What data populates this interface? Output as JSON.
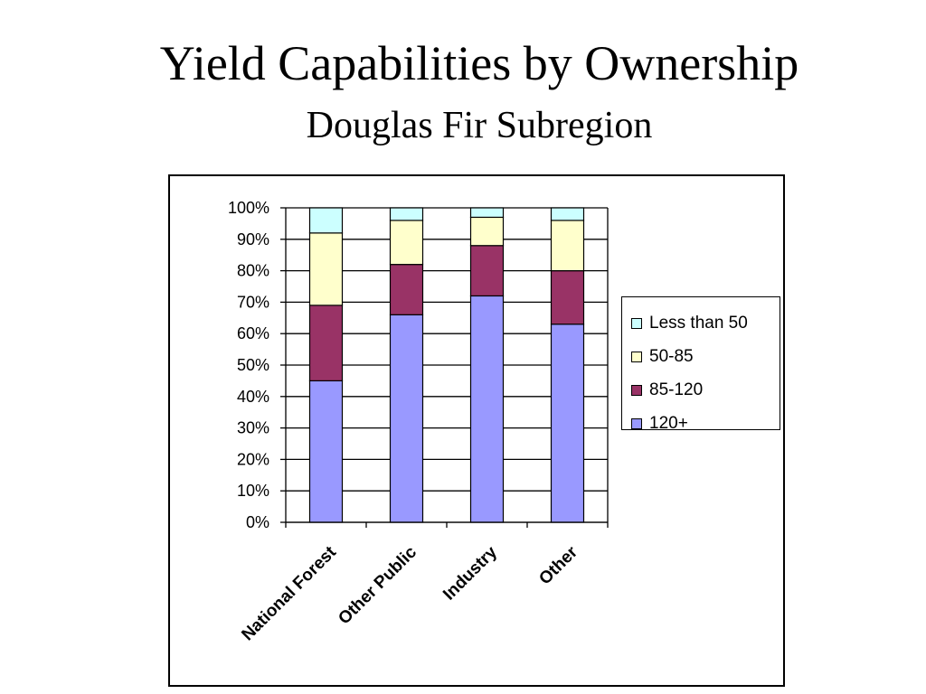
{
  "slide": {
    "title": "Yield Capabilities by Ownership",
    "subtitle": "Douglas Fir Subregion"
  },
  "chart_data": {
    "type": "bar",
    "stacked": "percent",
    "categories": [
      "National Forest",
      "Other Public",
      "Industry",
      "Other"
    ],
    "series": [
      {
        "name": "120+",
        "values": [
          45,
          66,
          72,
          63
        ],
        "color": "#9999ff"
      },
      {
        "name": "85-120",
        "values": [
          24,
          16,
          16,
          17
        ],
        "color": "#993366"
      },
      {
        "name": "50-85",
        "values": [
          23,
          14,
          9,
          16
        ],
        "color": "#ffffcc"
      },
      {
        "name": "Less than 50",
        "values": [
          8,
          4,
          3,
          4
        ],
        "color": "#ccffff"
      }
    ],
    "ylim": [
      0,
      100
    ],
    "yticks": [
      "0%",
      "10%",
      "20%",
      "30%",
      "40%",
      "50%",
      "60%",
      "70%",
      "80%",
      "90%",
      "100%"
    ],
    "grid": true,
    "legend_position": "right",
    "legend_order": [
      "Less than 50",
      "50-85",
      "85-120",
      "120+"
    ]
  }
}
